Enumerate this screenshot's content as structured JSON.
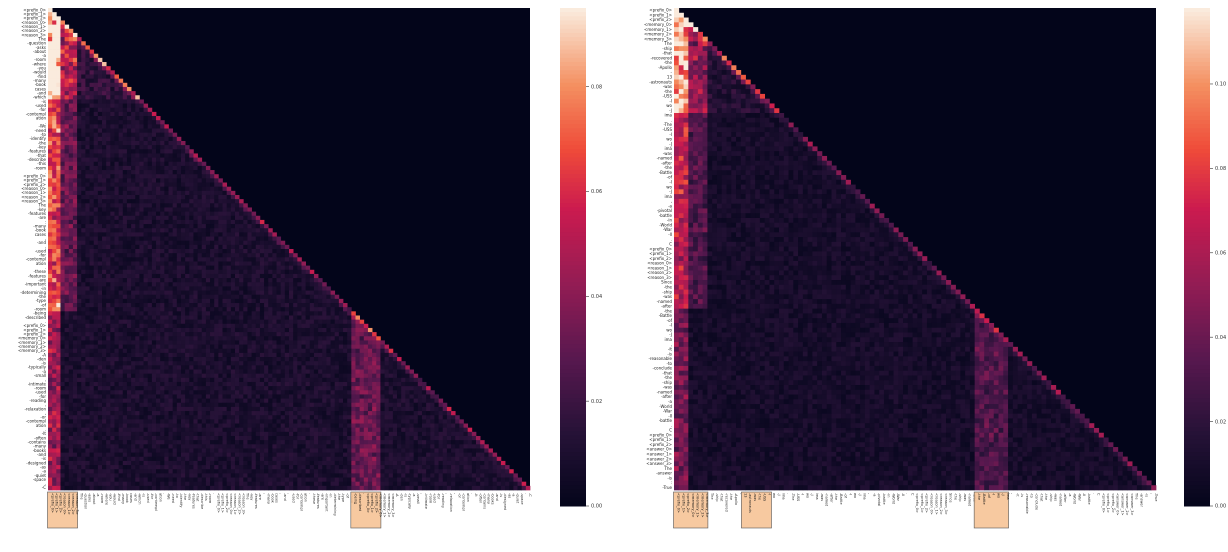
{
  "chart_data": [
    {
      "type": "heatmap",
      "title": "",
      "xlabel": "",
      "ylabel": "",
      "mask": "upper-triangle",
      "colormap": "rocket",
      "vmin": 0,
      "vmax": 0.095,
      "colorbar_ticks": [
        "0.00",
        "0.02",
        "0.04",
        "0.06",
        "0.08"
      ],
      "colorbar_values": [
        0,
        0.02,
        0.04,
        0.06,
        0.08
      ],
      "highlighted_token_groups": [
        [
          0,
          6
        ],
        [
          73,
          79
        ],
        [
          167,
          173
        ]
      ],
      "tokens": [
        "<prefix_0>",
        "<prefix_1>",
        "<prefix_2>",
        "<reason_0>",
        "<reason_1>",
        "<reason_2>",
        "<reason_3>",
        "The",
        "-question",
        "-asks",
        "-about",
        "-a",
        "-room",
        "-where",
        "-you",
        "-would",
        "-find",
        "-many",
        "-book",
        "cases",
        "-and",
        "-which",
        "-is",
        "-used",
        "-for",
        "-contempl",
        "ation",
        ".",
        "-We",
        "-need",
        "-to",
        "-identify",
        "-the",
        "-key",
        "-features",
        "-that",
        "-describe",
        "-this",
        "-room",
        ".",
        "<prefix_0>",
        "<prefix_1>",
        "<prefix_2>",
        "<reason_0>",
        "<reason_1>",
        "<reason_2>",
        "<reason_3>",
        "The",
        "-key",
        "-features",
        "-are",
        ":",
        "-many",
        "-book",
        "cases",
        ",",
        "-and",
        ",",
        "-used",
        "-for",
        "-contempl",
        "ation",
        ".",
        "-these",
        "-features",
        "-are",
        "-important",
        "-in",
        "-determining",
        "-the",
        "-type",
        "-of",
        "-room",
        "-being",
        "-described",
        ".",
        "<prefix_0>",
        "<prefix_1>",
        "<prefix_2>",
        "<memory_0>",
        "<memory_1>",
        "<memory_2>",
        "<memory_3>",
        "-A",
        "-den",
        "-is",
        "-typically",
        "-a",
        "-small",
        ",",
        "-intimate",
        "-room",
        "-used",
        "-for",
        "-reading",
        ",",
        "-relaxation",
        ",",
        "-or",
        "-contempl",
        "ation",
        ".",
        "-It",
        "-often",
        "-contains",
        "-many",
        "-books",
        "-and",
        "-is",
        "-designed",
        "-as",
        "-a",
        "-quiet",
        "-space",
        ".",
        "-C"
      ]
    },
    {
      "type": "heatmap",
      "title": "",
      "xlabel": "",
      "ylabel": "",
      "mask": "upper-triangle",
      "colormap": "rocket",
      "vmin": 0,
      "vmax": 0.118,
      "colorbar_ticks": [
        "0.00",
        "0.02",
        "0.04",
        "0.06",
        "0.08",
        "0.10"
      ],
      "colorbar_values": [
        0,
        0.02,
        0.04,
        0.06,
        0.08,
        0.1
      ],
      "highlighted_token_groups": [
        [
          0,
          6
        ],
        [
          63,
          69
        ],
        [
          125,
          131
        ]
      ],
      "tokens": [
        "<prefix_0>",
        "<prefix_1>",
        "<prefix_2>",
        "<memory_0>",
        "<memory_1>",
        "<memory_2>",
        "<memory_3>",
        "The",
        "-ship",
        "-that",
        "-recovered",
        "-the",
        "-Apollo",
        "-",
        "13",
        "-astronauts",
        "-was",
        "-the",
        "-USS",
        "-I",
        "wo",
        "-J",
        "ima",
        ".",
        "-The",
        "-USS",
        "-I",
        "wo",
        "-J",
        "ima",
        "-was",
        "-named",
        "-after",
        "-the",
        "-Battle",
        "-of",
        "-I",
        "wo",
        "-J",
        "ima",
        ",",
        "-a",
        "-pivotal",
        "-battle",
        "-in",
        "-World",
        "-War",
        "-II",
        ".",
        "C",
        "<prefix_0>",
        "<prefix_1>",
        "<prefix_2>",
        "<reason_0>",
        "<reason_1>",
        "<reason_2>",
        "<reason_3>",
        "Since",
        "-the",
        "-ship",
        "-was",
        "-named",
        "-after",
        "-the",
        "-Battle",
        "-of",
        "-I",
        "wo",
        "-J",
        "ima",
        ",",
        "-it",
        "-is",
        "-reasonable",
        "-to",
        "-conclude",
        "-that",
        "-the",
        "-ship",
        "-was",
        "-named",
        "-after",
        "-a",
        "-World",
        "-War",
        "-II",
        "-battle",
        ".",
        "C",
        "<prefix_0>",
        "<prefix_1>",
        "<prefix_2>",
        "<answer_0>",
        "<answer_1>",
        "<answer_2>",
        "<answer_3>",
        "The",
        "-answer",
        "-is",
        ":",
        "-True"
      ]
    }
  ]
}
